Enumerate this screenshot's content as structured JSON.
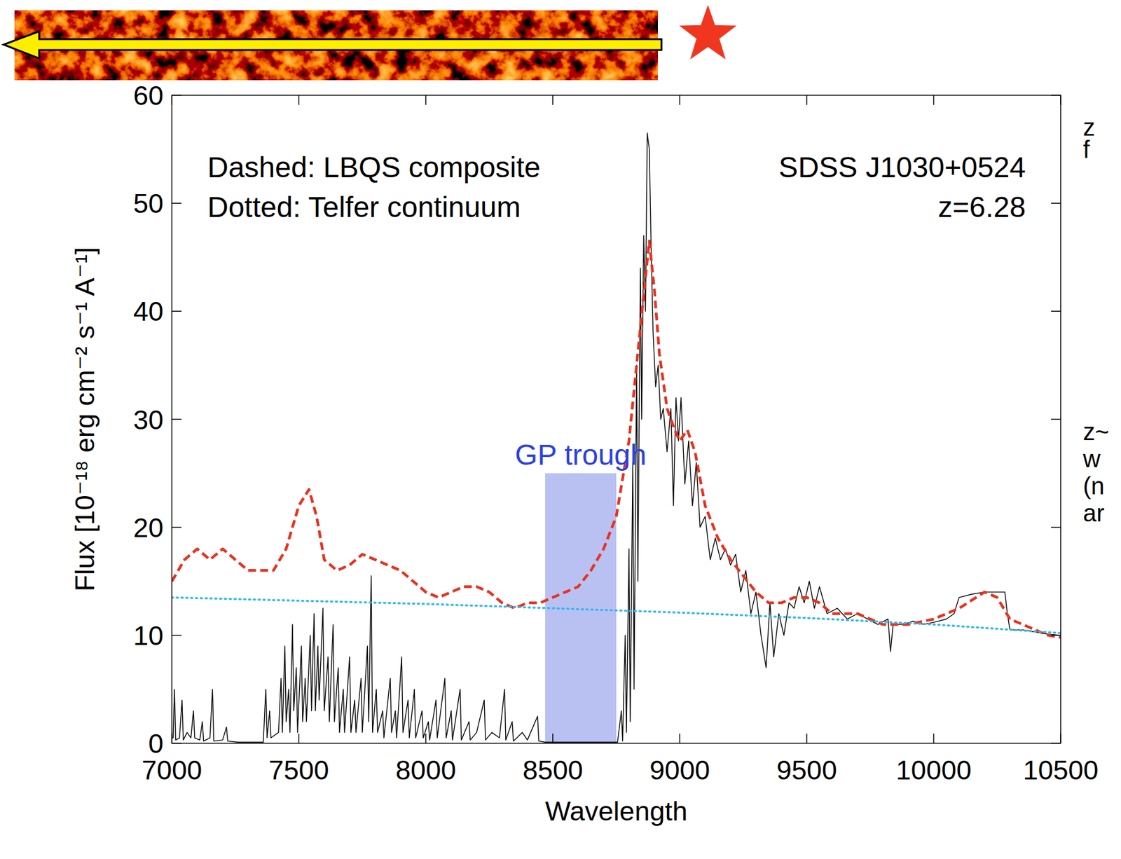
{
  "chart_data": {
    "type": "line",
    "title": "SDSS J1030+0524",
    "subtitle": "z=6.28",
    "x_label": "Wavelength",
    "y_label": "Flux [10⁻¹⁸ erg cm⁻² s⁻¹ A⁻¹]",
    "annotations": [
      "Dashed: LBQS composite",
      "Dotted: Telfer continuum"
    ],
    "side_text": [
      "z",
      "f",
      "z~",
      "w",
      "(n",
      "ar"
    ],
    "xlim": [
      7000,
      10500
    ],
    "ylim": [
      0,
      60
    ],
    "xticks": [
      7000,
      7500,
      8000,
      8500,
      9000,
      9500,
      10000,
      10500
    ],
    "yticks": [
      0,
      10,
      20,
      30,
      40,
      50,
      60
    ],
    "grid": false,
    "bands": [
      {
        "label": "GP trough",
        "x0": 8470,
        "x1": 8750,
        "y1": 25,
        "color": "#b9c1f3"
      }
    ],
    "series": [
      {
        "color": "#000000",
        "line_style": "solid",
        "x": [
          7000,
          7005,
          7010,
          7015,
          7030,
          7040,
          7045,
          7060,
          7075,
          7085,
          7090,
          7110,
          7120,
          7125,
          7150,
          7160,
          7165,
          7200,
          7215,
          7220,
          7260,
          7300,
          7340,
          7360,
          7370,
          7375,
          7385,
          7390,
          7420,
          7430,
          7435,
          7445,
          7450,
          7460,
          7465,
          7475,
          7480,
          7490,
          7495,
          7510,
          7515,
          7525,
          7530,
          7545,
          7550,
          7560,
          7565,
          7575,
          7580,
          7595,
          7600,
          7615,
          7620,
          7635,
          7640,
          7655,
          7660,
          7675,
          7680,
          7700,
          7705,
          7720,
          7725,
          7745,
          7750,
          7770,
          7775,
          7785,
          7790,
          7805,
          7810,
          7830,
          7835,
          7860,
          7865,
          7880,
          7885,
          7905,
          7910,
          7930,
          7935,
          7955,
          7960,
          7985,
          7990,
          8010,
          8015,
          8040,
          8045,
          8075,
          8080,
          8100,
          8105,
          8135,
          8140,
          8170,
          8175,
          8200,
          8230,
          8235,
          8260,
          8290,
          8310,
          8315,
          8340,
          8345,
          8380,
          8400,
          8440,
          8445,
          8470,
          8600,
          8755,
          8770,
          8775,
          8785,
          8790,
          8800,
          8805,
          8815,
          8820,
          8830,
          8835,
          8845,
          8850,
          8858,
          8865,
          8872,
          8880,
          8888,
          8895,
          8905,
          8915,
          8925,
          8935,
          8950,
          8965,
          8975,
          8985,
          8995,
          9005,
          9020,
          9035,
          9050,
          9065,
          9080,
          9100,
          9120,
          9140,
          9160,
          9180,
          9200,
          9220,
          9240,
          9260,
          9280,
          9300,
          9320,
          9340,
          9355,
          9370,
          9390,
          9410,
          9430,
          9450,
          9470,
          9490,
          9510,
          9530,
          9550,
          9580,
          9620,
          9660,
          9700,
          9740,
          9780,
          9820,
          9830,
          9840,
          9880,
          9920,
          9960,
          10000,
          10050,
          10080,
          10100,
          10150,
          10200,
          10280,
          10290,
          10300,
          10350,
          10400,
          10450,
          10500
        ],
        "values": [
          0.5,
          0.5,
          5,
          0.3,
          0.5,
          4,
          0.3,
          1,
          0.5,
          3,
          0.5,
          0.3,
          2,
          0.2,
          0.5,
          5,
          0.2,
          0.3,
          1.5,
          0.2,
          0.1,
          0.1,
          0.1,
          0.1,
          5,
          0.5,
          3,
          0.5,
          1,
          6,
          1,
          9,
          2,
          5,
          1,
          11,
          3,
          7,
          1,
          9,
          2,
          6,
          2,
          10,
          3,
          12,
          3,
          9,
          4,
          12.5,
          3,
          8,
          2,
          11,
          2,
          7,
          1,
          5,
          1,
          8,
          1,
          4,
          1,
          6,
          1,
          9,
          2,
          15.5,
          1,
          5,
          1,
          3,
          0.5,
          6,
          1,
          3,
          0.5,
          8,
          1,
          4,
          0.5,
          5,
          0.5,
          3,
          0.5,
          2,
          0.3,
          4,
          0.5,
          6,
          0.5,
          3,
          0.3,
          5,
          0.3,
          2,
          0.3,
          1,
          4,
          0.3,
          1,
          0.5,
          5,
          0.3,
          2,
          0.2,
          1,
          0.3,
          2.5,
          0.2,
          0.1,
          0.1,
          0.1,
          3,
          0.2,
          10,
          1,
          18,
          2,
          26,
          5,
          35,
          15,
          44,
          30,
          47,
          40,
          56.5,
          55,
          45,
          38,
          33,
          35,
          30,
          31,
          27,
          31,
          22,
          32,
          28,
          32,
          24,
          28,
          22,
          26,
          20,
          21,
          17,
          19,
          17,
          18,
          16.5,
          17.5,
          14,
          16,
          12,
          14,
          10,
          7,
          13,
          8,
          12,
          10,
          13,
          12.5,
          14.5,
          13,
          15,
          12.5,
          14.5,
          12,
          12.5,
          11.5,
          12,
          11.5,
          11,
          11.5,
          8.5,
          11,
          11,
          11.3,
          11,
          11.2,
          11.5,
          12,
          13.5,
          13.8,
          14,
          14,
          12,
          10.5,
          10.5,
          10.3,
          10.1,
          10
        ]
      },
      {
        "color": "#e8321e",
        "line_style": "dashed",
        "x": [
          7000,
          7050,
          7100,
          7150,
          7200,
          7250,
          7300,
          7350,
          7400,
          7450,
          7500,
          7540,
          7570,
          7600,
          7650,
          7700,
          7750,
          7800,
          7850,
          7900,
          7950,
          8000,
          8050,
          8100,
          8150,
          8200,
          8250,
          8300,
          8350,
          8400,
          8450,
          8500,
          8550,
          8600,
          8650,
          8700,
          8750,
          8800,
          8830,
          8860,
          8880,
          8900,
          8920,
          8950,
          8980,
          9000,
          9030,
          9060,
          9100,
          9150,
          9200,
          9250,
          9300,
          9350,
          9400,
          9450,
          9500,
          9550,
          9600,
          9650,
          9700,
          9750,
          9800,
          9900,
          10000,
          10100,
          10200,
          10250,
          10300,
          10350,
          10400,
          10450,
          10500
        ],
        "values": [
          15,
          17,
          18,
          17,
          18,
          17,
          16,
          16,
          16,
          18,
          22,
          23.5,
          21,
          17,
          16,
          16.5,
          17.5,
          17,
          16.5,
          16,
          15,
          14,
          13.5,
          14,
          14.5,
          14.5,
          14,
          13,
          12.5,
          13,
          13,
          13.5,
          14,
          14.5,
          16,
          18,
          21,
          28,
          35,
          42,
          46.5,
          42,
          36,
          31,
          29,
          28,
          29,
          27,
          22,
          19,
          17,
          15.5,
          14,
          13,
          13,
          13.5,
          13.5,
          13,
          12,
          12,
          12,
          11.5,
          11,
          11,
          11.5,
          12.5,
          14,
          13.5,
          11.5,
          11,
          10.5,
          10,
          9.8
        ]
      },
      {
        "color": "#35b8ea",
        "line_style": "dotted",
        "x": [
          7000,
          7500,
          8000,
          8500,
          9000,
          9500,
          10000,
          10500
        ],
        "values": [
          13.5,
          13.2,
          12.9,
          12.5,
          12.1,
          11.6,
          11.0,
          10.2
        ]
      }
    ]
  }
}
